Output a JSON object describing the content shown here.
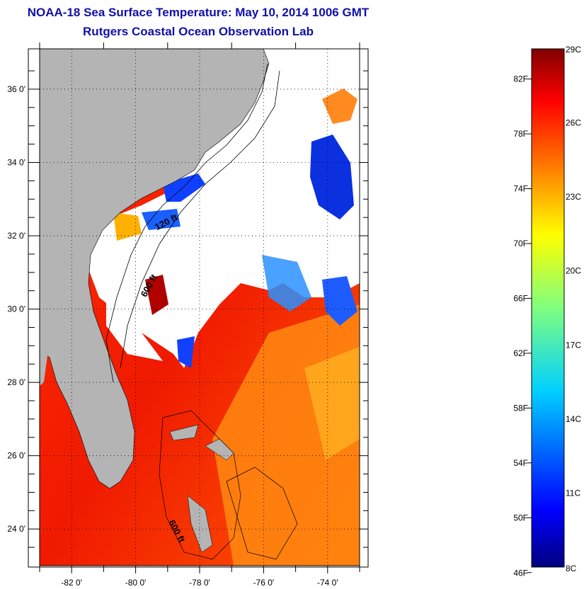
{
  "title": "NOAA-18 Sea Surface Temperature:  May 10, 2014 1006 GMT",
  "subtitle": "Rutgers Coastal Ocean Observation Lab",
  "map": {
    "lat_range": [
      23.0,
      37.1
    ],
    "lon_range": [
      -83.0,
      -73.0
    ],
    "lat_ticks": [
      {
        "value": 24,
        "label": "24 0'"
      },
      {
        "value": 26,
        "label": "26 0'"
      },
      {
        "value": 28,
        "label": "28 0'"
      },
      {
        "value": 30,
        "label": "30 0'"
      },
      {
        "value": 32,
        "label": "32 0'"
      },
      {
        "value": 34,
        "label": "34 0'"
      },
      {
        "value": 36,
        "label": "36 0'"
      }
    ],
    "lon_ticks": [
      {
        "value": -82,
        "label": "-82 0'"
      },
      {
        "value": -80,
        "label": "-80 0'"
      },
      {
        "value": -78,
        "label": "-78 0'"
      },
      {
        "value": -76,
        "label": "-76 0'"
      },
      {
        "value": -74,
        "label": "-74 0'"
      }
    ],
    "contour_labels": [
      {
        "text": "120 ft",
        "lon": -79.0,
        "lat": 32.3
      },
      {
        "text": "600 ft",
        "lon": -79.5,
        "lat": 30.6
      },
      {
        "text": "600 ft",
        "lon": -78.8,
        "lat": 23.9
      }
    ],
    "colors": {
      "land": "#b4b4b4",
      "cloud": "#ffffff",
      "grid": "#000000"
    }
  },
  "colorbar": {
    "min_c": 8,
    "max_c": 29,
    "fahrenheit_labels": [
      "46F",
      "50F",
      "54F",
      "58F",
      "62F",
      "66F",
      "70F",
      "74F",
      "78F",
      "82F"
    ],
    "celsius_labels": [
      "8C",
      "11C",
      "14C",
      "17C",
      "20C",
      "23C",
      "26C",
      "29C"
    ]
  }
}
